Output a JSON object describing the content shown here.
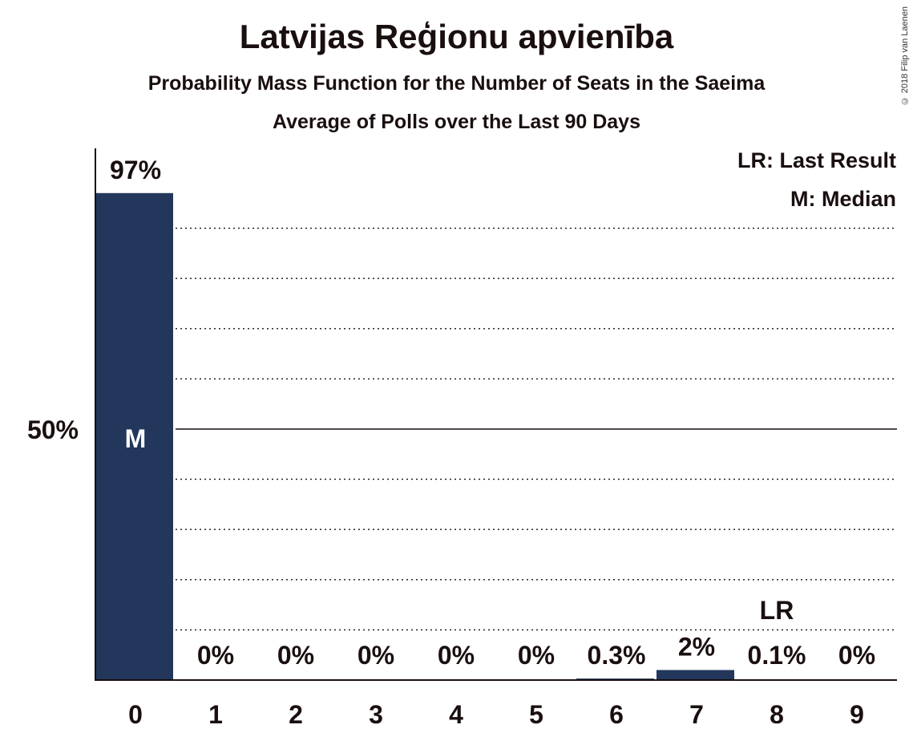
{
  "title": "Latvijas Reģionu apvienība",
  "subtitle": "Probability Mass Function for the Number of Seats in the Saeima",
  "subtitle2": "Average of Polls over the Last 90 Days",
  "copyright": "© 2018 Filip van Laenen",
  "legend": {
    "last_result": "LR: Last Result",
    "median": "M: Median"
  },
  "colors": {
    "bar": "#22375b",
    "text": "#1a0f0f"
  },
  "chart_data": {
    "type": "bar",
    "categories": [
      "0",
      "1",
      "2",
      "3",
      "4",
      "5",
      "6",
      "7",
      "8",
      "9"
    ],
    "values": [
      97,
      0,
      0,
      0,
      0,
      0,
      0.3,
      2,
      0.1,
      0
    ],
    "data_labels": [
      "97%",
      "0%",
      "0%",
      "0%",
      "0%",
      "0%",
      "0.3%",
      "2%",
      "0.1%",
      "0%"
    ],
    "ylim": [
      0,
      100
    ],
    "y_ticks": [
      {
        "value": 50,
        "label": "50%"
      }
    ],
    "gridlines": [
      10,
      20,
      30,
      40,
      50,
      60,
      70,
      80,
      90
    ],
    "median": {
      "category": "0",
      "label": "M"
    },
    "last_result": {
      "category": "8",
      "label": "LR"
    },
    "legend_placement": "top-right"
  }
}
